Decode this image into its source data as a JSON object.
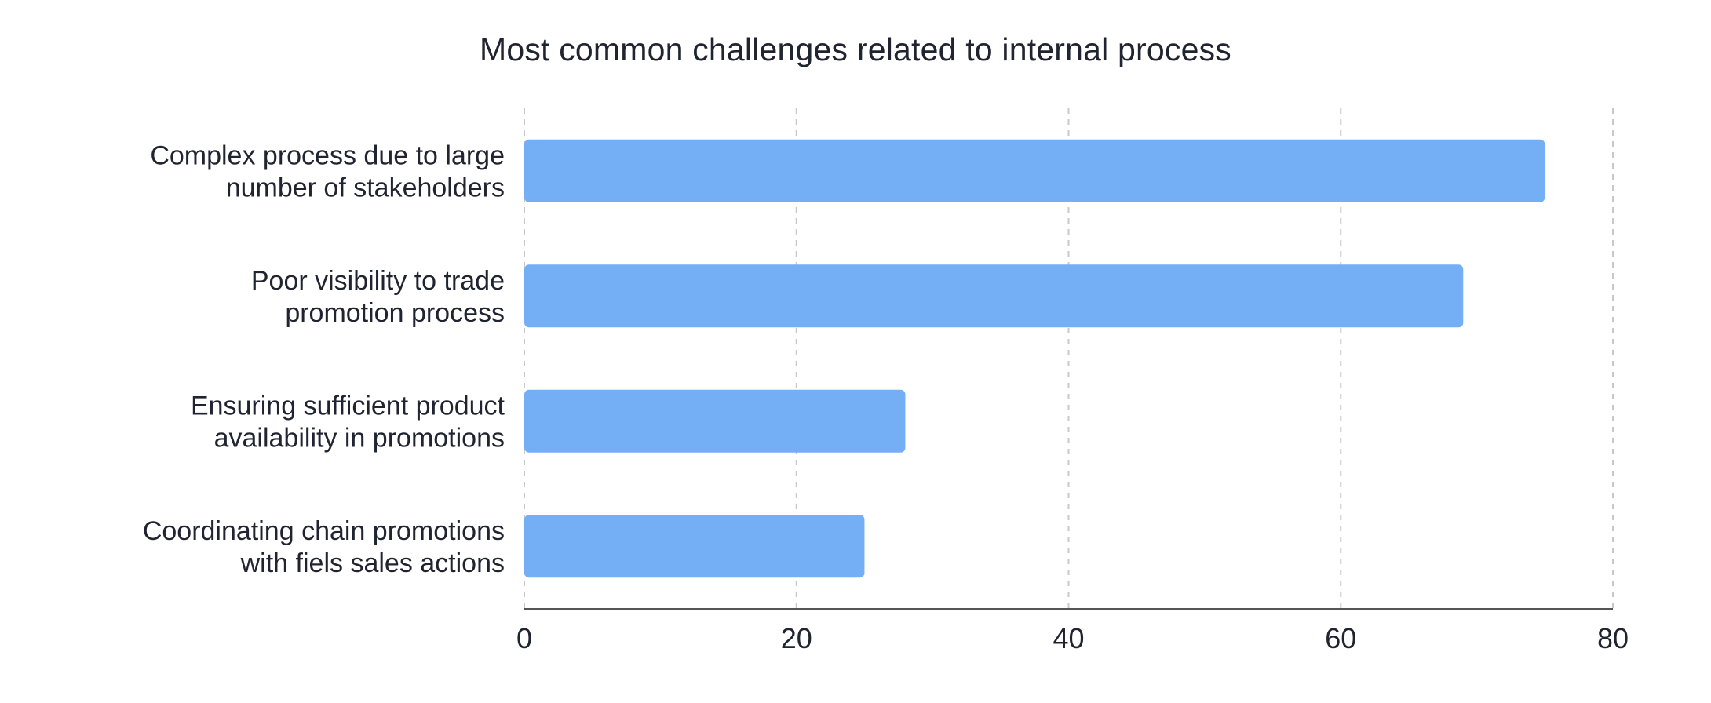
{
  "chart_data": {
    "type": "bar",
    "orientation": "horizontal",
    "title": "Most common challenges related to internal process",
    "xlabel": "",
    "ylabel": "",
    "categories": [
      [
        "Complex process due to large",
        "number of stakeholders"
      ],
      [
        "Poor visibility to trade",
        "promotion process"
      ],
      [
        "Ensuring sufficient product",
        "availability in promotions"
      ],
      [
        "Coordinating chain promotions",
        "with fiels sales actions"
      ]
    ],
    "values": [
      75,
      69,
      28,
      25
    ],
    "xlim": [
      0,
      80
    ],
    "xticks": [
      "0",
      "20",
      "40",
      "60",
      "80"
    ],
    "grid": true,
    "bar_color": "#74aef5",
    "gridline_color": "#c8c8c8",
    "axis_color": "#555555"
  }
}
